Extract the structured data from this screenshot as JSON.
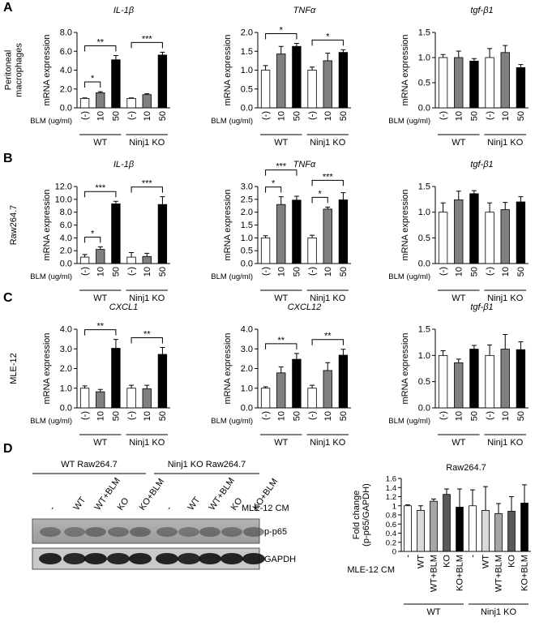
{
  "panel_letters": [
    "A",
    "B",
    "C",
    "D"
  ],
  "row_labels": [
    [
      "Peritoneal",
      "macrophages"
    ],
    [
      "Raw264.7"
    ],
    [
      "MLE-12"
    ]
  ],
  "chart_data": [
    {
      "type": "bar",
      "title": "IL-1β",
      "ylabel": [
        "mRNA expression"
      ],
      "xlabel": "BLM (ug/ml)",
      "categories": [
        "(-)",
        "10",
        "50",
        "(-)",
        "10",
        "50"
      ],
      "groups": [
        "WT",
        "Ninj1 KO"
      ],
      "values": [
        1.0,
        1.6,
        5.1,
        1.0,
        1.4,
        5.6
      ],
      "errors": [
        0.05,
        0.12,
        0.45,
        0.05,
        0.1,
        0.3
      ],
      "colors": [
        "#ffffff",
        "#808080",
        "#000000",
        "#ffffff",
        "#808080",
        "#000000"
      ],
      "ylim": [
        0,
        8
      ],
      "yticks": [
        {
          "value": 0,
          "label": "0.0"
        },
        {
          "value": 2,
          "label": "2.0"
        },
        {
          "value": 4,
          "label": "4.0"
        },
        {
          "value": 6,
          "label": "6.0"
        },
        {
          "value": 8,
          "label": "8.0"
        }
      ],
      "significance": [
        {
          "label": "*",
          "from": 0,
          "to": 1
        },
        {
          "label": "**",
          "from": 0,
          "to": 2
        },
        {
          "label": "***",
          "from": 3,
          "to": 5
        }
      ]
    },
    {
      "type": "bar",
      "title": "TNFα",
      "ylabel": [
        "mRNA expression"
      ],
      "xlabel": "BLM (ug/ml)",
      "categories": [
        "(-)",
        "10",
        "50",
        "(-)",
        "10",
        "50"
      ],
      "groups": [
        "WT",
        "Ninj1 KO"
      ],
      "values": [
        1.0,
        1.43,
        1.63,
        1.0,
        1.25,
        1.47
      ],
      "errors": [
        0.12,
        0.2,
        0.08,
        0.08,
        0.2,
        0.07
      ],
      "colors": [
        "#ffffff",
        "#808080",
        "#000000",
        "#ffffff",
        "#808080",
        "#000000"
      ],
      "ylim": [
        0,
        2
      ],
      "yticks": [
        {
          "value": 0,
          "label": "0.0"
        },
        0.5,
        {
          "value": 1,
          "label": "1.0"
        },
        1.5,
        {
          "value": 2,
          "label": "2.0"
        }
      ],
      "significance": [
        {
          "label": "*",
          "from": 0,
          "to": 2
        },
        {
          "label": "*",
          "from": 3,
          "to": 5
        }
      ]
    },
    {
      "type": "bar",
      "title": "tgf-β1",
      "ylabel": [
        "mRNA expression"
      ],
      "xlabel": "BLM (ug/ml)",
      "categories": [
        "(-)",
        "10",
        "50",
        "(-)",
        "10",
        "50"
      ],
      "groups": [
        "WT",
        "Ninj1 KO"
      ],
      "values": [
        1.0,
        1.0,
        0.93,
        1.0,
        1.1,
        0.8
      ],
      "errors": [
        0.06,
        0.13,
        0.05,
        0.18,
        0.14,
        0.06
      ],
      "colors": [
        "#ffffff",
        "#808080",
        "#000000",
        "#ffffff",
        "#808080",
        "#000000"
      ],
      "ylim": [
        0,
        1.5
      ],
      "yticks": [
        {
          "value": 0,
          "label": "0.0"
        },
        0.5,
        {
          "value": 1,
          "label": "1.0"
        },
        1.5
      ],
      "significance": []
    },
    {
      "type": "bar",
      "title": "IL-1β",
      "ylabel": [
        "mRNA expression"
      ],
      "xlabel": "BLM (ug/ml)",
      "categories": [
        "(-)",
        "10",
        "50",
        "(-)",
        "10",
        "50"
      ],
      "groups": [
        "WT",
        "Ninj1 KO"
      ],
      "values": [
        1.0,
        2.2,
        9.3,
        1.0,
        1.1,
        9.2
      ],
      "errors": [
        0.4,
        0.4,
        0.4,
        0.7,
        0.5,
        1.2
      ],
      "colors": [
        "#ffffff",
        "#808080",
        "#000000",
        "#ffffff",
        "#808080",
        "#000000"
      ],
      "ylim": [
        0,
        12
      ],
      "yticks": [
        {
          "value": 0,
          "label": "0.0"
        },
        {
          "value": 2,
          "label": "2.0"
        },
        {
          "value": 4,
          "label": "4.0"
        },
        {
          "value": 6,
          "label": "6.0"
        },
        {
          "value": 8,
          "label": "8.0"
        },
        {
          "value": 10,
          "label": "10.0"
        },
        {
          "value": 12,
          "label": "12.0"
        }
      ],
      "significance": [
        {
          "label": "*",
          "from": 0,
          "to": 1
        },
        {
          "label": "***",
          "from": 0,
          "to": 2
        },
        {
          "label": "***",
          "from": 3,
          "to": 5
        }
      ]
    },
    {
      "type": "bar",
      "title": "TNFα",
      "ylabel": [
        "mRNA expression"
      ],
      "xlabel": "BLM (ug/ml)",
      "categories": [
        "(-)",
        "10",
        "50",
        "(-)",
        "10",
        "50"
      ],
      "groups": [
        "WT",
        "Ninj1 KO"
      ],
      "values": [
        1.0,
        2.3,
        2.47,
        1.0,
        2.12,
        2.48
      ],
      "errors": [
        0.08,
        0.3,
        0.15,
        0.1,
        0.08,
        0.28
      ],
      "colors": [
        "#ffffff",
        "#808080",
        "#000000",
        "#ffffff",
        "#808080",
        "#000000"
      ],
      "ylim": [
        0,
        3
      ],
      "yticks": [
        {
          "value": 0,
          "label": "0.0"
        },
        0.5,
        {
          "value": 1,
          "label": "1.0"
        },
        1.5,
        {
          "value": 2,
          "label": "2.0"
        },
        2.5,
        {
          "value": 3,
          "label": "3.0"
        }
      ],
      "significance": [
        {
          "label": "*",
          "from": 0,
          "to": 1
        },
        {
          "label": "***",
          "from": 0,
          "to": 2
        },
        {
          "label": "*",
          "from": 3,
          "to": 4
        },
        {
          "label": "***",
          "from": 3,
          "to": 5
        }
      ]
    },
    {
      "type": "bar",
      "title": "tgf-β1",
      "ylabel": [
        "mRNA expression"
      ],
      "xlabel": "BLM (ug/ml)",
      "categories": [
        "(-)",
        "10",
        "50",
        "(-)",
        "10",
        "50"
      ],
      "groups": [
        "WT",
        "Ninj1 KO"
      ],
      "values": [
        1.0,
        1.24,
        1.36,
        1.0,
        1.05,
        1.2
      ],
      "errors": [
        0.18,
        0.17,
        0.06,
        0.18,
        0.14,
        0.1
      ],
      "colors": [
        "#ffffff",
        "#808080",
        "#000000",
        "#ffffff",
        "#808080",
        "#000000"
      ],
      "ylim": [
        0,
        1.5
      ],
      "yticks": [
        {
          "value": 0,
          "label": "0.0"
        },
        0.5,
        {
          "value": 1,
          "label": "1.0"
        },
        1.5
      ],
      "significance": []
    },
    {
      "type": "bar",
      "title": "CXCL1",
      "ylabel": [
        "mRNA expression"
      ],
      "xlabel": "BLM (ug/ml)",
      "categories": [
        "(-)",
        "10",
        "50",
        "(-)",
        "10",
        "50"
      ],
      "groups": [
        "WT",
        "Ninj1 KO"
      ],
      "values": [
        1.0,
        0.82,
        3.03,
        1.0,
        0.97,
        2.72
      ],
      "errors": [
        0.12,
        0.12,
        0.45,
        0.15,
        0.18,
        0.35
      ],
      "colors": [
        "#ffffff",
        "#808080",
        "#000000",
        "#ffffff",
        "#808080",
        "#000000"
      ],
      "ylim": [
        0,
        4
      ],
      "yticks": [
        {
          "value": 0,
          "label": "0.0"
        },
        {
          "value": 1,
          "label": "1.0"
        },
        {
          "value": 2,
          "label": "2.0"
        },
        {
          "value": 3,
          "label": "3.0"
        },
        {
          "value": 4,
          "label": "4.0"
        }
      ],
      "significance": [
        {
          "label": "**",
          "from": 0,
          "to": 2
        },
        {
          "label": "**",
          "from": 3,
          "to": 5
        }
      ]
    },
    {
      "type": "bar",
      "title": "CXCL12",
      "ylabel": [
        "mRNA expression"
      ],
      "xlabel": "BLM (ug/ml)",
      "categories": [
        "(-)",
        "10",
        "50",
        "(-)",
        "10",
        "50"
      ],
      "groups": [
        "WT",
        "Ninj1 KO"
      ],
      "values": [
        1.0,
        1.78,
        2.47,
        1.0,
        1.9,
        2.68
      ],
      "errors": [
        0.07,
        0.3,
        0.3,
        0.15,
        0.4,
        0.3
      ],
      "colors": [
        "#ffffff",
        "#808080",
        "#000000",
        "#ffffff",
        "#808080",
        "#000000"
      ],
      "ylim": [
        0,
        4
      ],
      "yticks": [
        {
          "value": 0,
          "label": "0.0"
        },
        {
          "value": 1,
          "label": "1.0"
        },
        {
          "value": 2,
          "label": "2.0"
        },
        {
          "value": 3,
          "label": "3.0"
        },
        {
          "value": 4,
          "label": "4.0"
        }
      ],
      "significance": [
        {
          "label": "**",
          "from": 0,
          "to": 2
        },
        {
          "label": "**",
          "from": 3,
          "to": 5
        }
      ]
    },
    {
      "type": "bar",
      "title": "tgf-β1",
      "ylabel": [
        "mRNA expression"
      ],
      "xlabel": "BLM (ug/ml)",
      "categories": [
        "(-)",
        "10",
        "50",
        "(-)",
        "10",
        "50"
      ],
      "groups": [
        "WT",
        "Ninj1 KO"
      ],
      "values": [
        1.0,
        0.86,
        1.12,
        1.0,
        1.12,
        1.11
      ],
      "errors": [
        0.09,
        0.07,
        0.07,
        0.2,
        0.28,
        0.15
      ],
      "colors": [
        "#ffffff",
        "#808080",
        "#000000",
        "#ffffff",
        "#808080",
        "#000000"
      ],
      "ylim": [
        0,
        1.5
      ],
      "yticks": [
        {
          "value": 0,
          "label": "0.0"
        },
        0.5,
        {
          "value": 1,
          "label": "1.0"
        },
        1.5
      ],
      "significance": []
    },
    {
      "type": "bar",
      "title": "Raw264.7",
      "ylabel": [
        "Fold change",
        "(p-p65/GAPDH)"
      ],
      "xlabel": "MLE-12 CM",
      "categories": [
        "-",
        "WT",
        "WT+BLM",
        "KO",
        "KO+BLM",
        "-",
        "WT",
        "WT+BLM",
        "KO",
        "KO+BLM"
      ],
      "groups": [
        "WT",
        "Ninj1 KO"
      ],
      "values": [
        1.0,
        0.9,
        1.1,
        1.25,
        0.97,
        1.0,
        0.9,
        0.83,
        0.88,
        1.06
      ],
      "errors": [
        0.02,
        0.1,
        0.05,
        0.12,
        0.4,
        0.35,
        0.52,
        0.22,
        0.32,
        0.4
      ],
      "colors": [
        "#ffffff",
        "#d9d9d9",
        "#a6a6a6",
        "#595959",
        "#000000",
        "#ffffff",
        "#d9d9d9",
        "#a6a6a6",
        "#595959",
        "#000000"
      ],
      "ylim": [
        0,
        1.6
      ],
      "yticks": [
        0,
        0.2,
        0.4,
        0.6,
        0.8,
        1,
        1.2,
        1.4,
        1.6
      ],
      "significance": []
    }
  ],
  "blot": {
    "groups": [
      "WT Raw264.7",
      "Ninj1 KO Raw264.7"
    ],
    "lanes": [
      "-",
      "WT",
      "WT+BLM",
      "KO",
      "KO+BLM",
      "-",
      "WT",
      "WT+BLM",
      "KO",
      "KO+BLM"
    ],
    "lane_label": "MLE-12 CM",
    "bands": [
      "p-p65",
      "GAPDH"
    ]
  }
}
